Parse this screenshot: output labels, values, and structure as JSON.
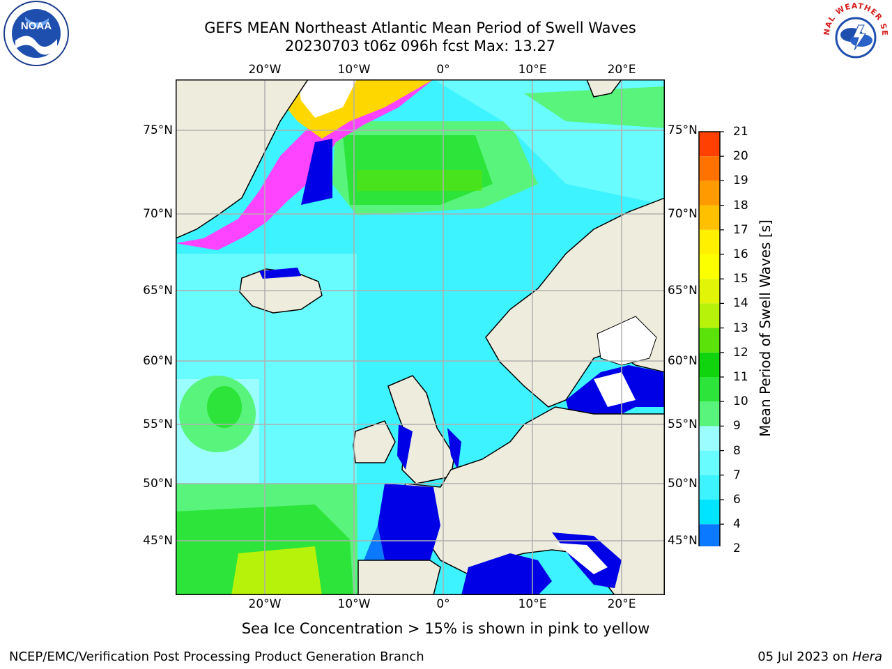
{
  "header": {
    "title_line1": "GEFS MEAN Northeast Atlantic Mean Period of Swell Waves",
    "title_line2": "20230703 t06z 096h fcst   Max: 13.27"
  },
  "logos": {
    "noaa_text": "NOAA",
    "nws_text": "NATIONAL WEATHER SERVICE"
  },
  "map": {
    "lon_labels": [
      "20°W",
      "10°W",
      "0°",
      "10°E",
      "20°E"
    ],
    "lat_labels_left": [
      "75°N",
      "70°N",
      "65°N",
      "60°N",
      "55°N",
      "50°N",
      "45°N"
    ],
    "lat_labels_right": [
      "75°N",
      "70°N",
      "65°N",
      "60°N",
      "55°N",
      "50°N",
      "45°N"
    ],
    "colors": {
      "land": "#eeecdc",
      "grid": "#b0b0b0",
      "coast": "#000000",
      "ice_white": "#ffffff"
    }
  },
  "colorbar": {
    "label": "Mean Period of Swell Waves [s]",
    "tick_labels": [
      "2",
      "4",
      "6",
      "7",
      "8",
      "9",
      "10",
      "11",
      "12",
      "13",
      "14",
      "15",
      "16",
      "17",
      "18",
      "19",
      "20",
      "21"
    ],
    "tick_values": [
      2,
      4,
      6,
      7,
      8,
      9,
      10,
      11,
      12,
      13,
      14,
      15,
      16,
      17,
      18,
      19,
      20,
      21
    ],
    "bin_colors": [
      "#0a78ff",
      "#00e4ff",
      "#3cf3ff",
      "#68fbff",
      "#9bfdff",
      "#58f47c",
      "#2ce43a",
      "#10d40e",
      "#5be20a",
      "#b6f20a",
      "#e2f408",
      "#fbff00",
      "#fff000",
      "#ffc000",
      "#ff9a00",
      "#ff7200",
      "#ff4000",
      "#ff0000"
    ],
    "under_color": "#0000e6"
  },
  "caption": "Sea Ice Concentration > 15% is shown in pink to yellow",
  "footer": {
    "left": "NCEP/EMC/Verification Post Processing Product Generation Branch",
    "right_prefix": "05 Jul 2023 on ",
    "right_host": "Hera"
  }
}
